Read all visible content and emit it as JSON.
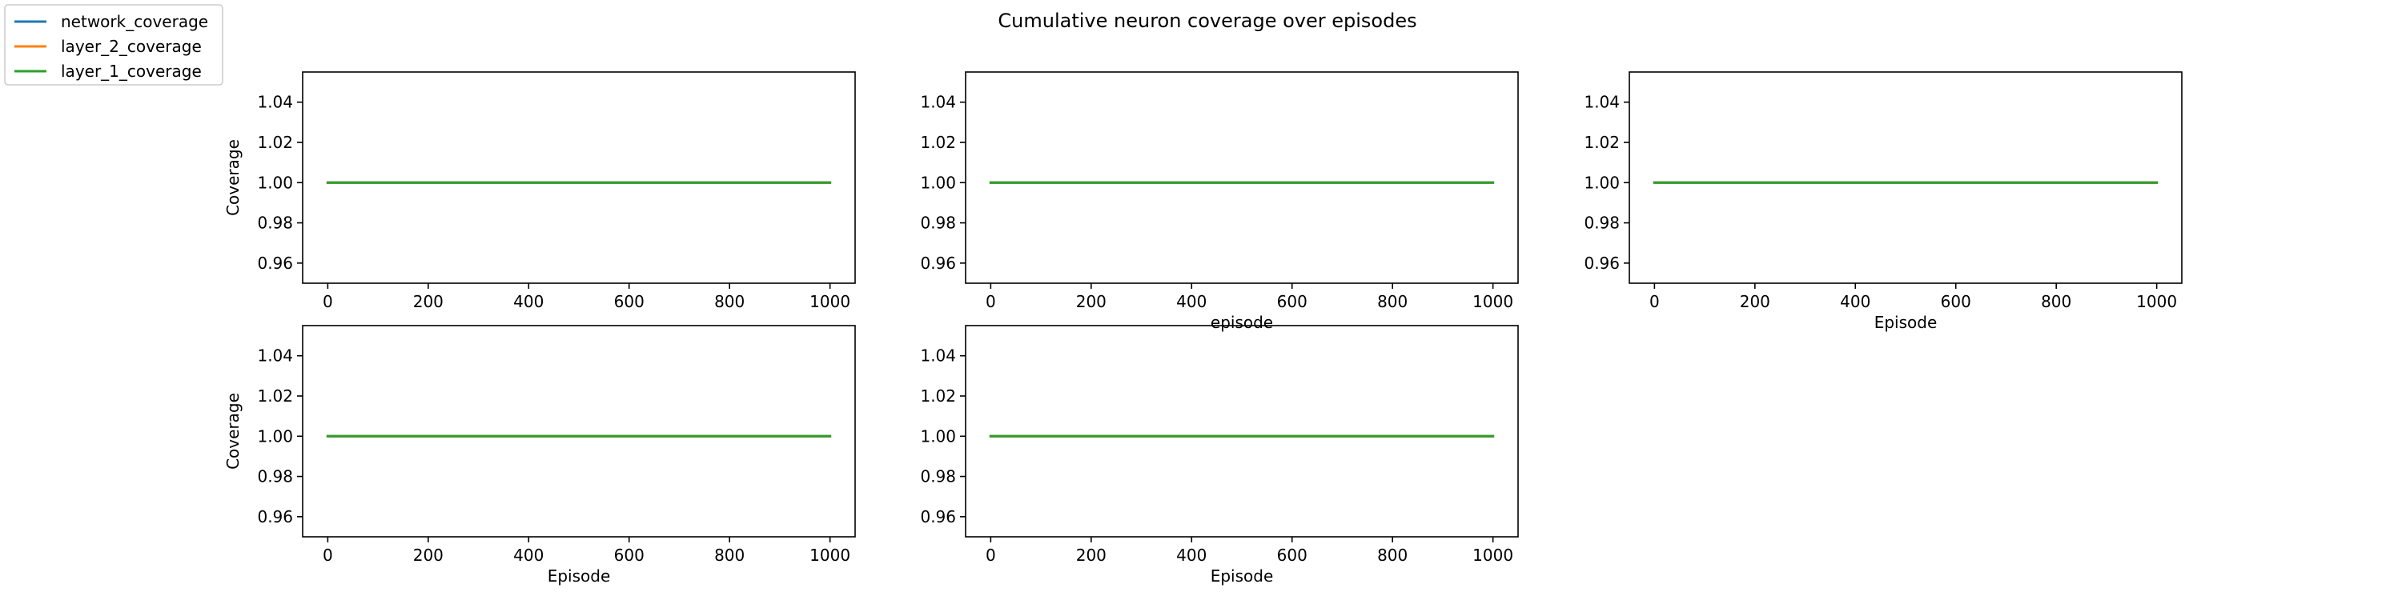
{
  "figure": {
    "title": "Cumulative neuron coverage over episodes"
  },
  "legend": {
    "placement": "top-left",
    "entries": [
      {
        "label": "network_coverage",
        "color": "#1f77b4"
      },
      {
        "label": "layer_2_coverage",
        "color": "#ff7f0e"
      },
      {
        "label": "layer_1_coverage",
        "color": "#2ca02c"
      }
    ]
  },
  "chart_data": [
    {
      "type": "line",
      "xlabel": "",
      "ylabel": "Coverage",
      "xlim": [
        -50,
        1050
      ],
      "ylim": [
        0.95,
        1.055
      ],
      "xticks": [
        0,
        200,
        400,
        600,
        800,
        1000
      ],
      "yticks": [
        0.96,
        0.98,
        1.0,
        1.02,
        1.04
      ],
      "grid": false,
      "series": [
        {
          "name": "network_coverage",
          "color": "#1f77b4",
          "x": [
            0,
            1000
          ],
          "y": [
            1.0,
            1.0
          ]
        },
        {
          "name": "layer_2_coverage",
          "color": "#ff7f0e",
          "x": [
            0,
            1000
          ],
          "y": [
            1.0,
            1.0
          ]
        },
        {
          "name": "layer_1_coverage",
          "color": "#2ca02c",
          "x": [
            0,
            1000
          ],
          "y": [
            1.0,
            1.0
          ]
        }
      ]
    },
    {
      "type": "line",
      "xlabel": "episode",
      "ylabel": "",
      "xlim": [
        -50,
        1050
      ],
      "ylim": [
        0.95,
        1.055
      ],
      "xticks": [
        0,
        200,
        400,
        600,
        800,
        1000
      ],
      "yticks": [
        0.96,
        0.98,
        1.0,
        1.02,
        1.04
      ],
      "grid": false,
      "series": [
        {
          "name": "network_coverage",
          "color": "#1f77b4",
          "x": [
            0,
            1000
          ],
          "y": [
            1.0,
            1.0
          ]
        },
        {
          "name": "layer_2_coverage",
          "color": "#ff7f0e",
          "x": [
            0,
            1000
          ],
          "y": [
            1.0,
            1.0
          ]
        },
        {
          "name": "layer_1_coverage",
          "color": "#2ca02c",
          "x": [
            0,
            1000
          ],
          "y": [
            1.0,
            1.0
          ]
        }
      ]
    },
    {
      "type": "line",
      "xlabel": "Episode",
      "ylabel": "",
      "xlim": [
        -50,
        1050
      ],
      "ylim": [
        0.95,
        1.055
      ],
      "xticks": [
        0,
        200,
        400,
        600,
        800,
        1000
      ],
      "yticks": [
        0.96,
        0.98,
        1.0,
        1.02,
        1.04
      ],
      "grid": false,
      "series": [
        {
          "name": "network_coverage",
          "color": "#1f77b4",
          "x": [
            0,
            1000
          ],
          "y": [
            1.0,
            1.0
          ]
        },
        {
          "name": "layer_2_coverage",
          "color": "#ff7f0e",
          "x": [
            0,
            1000
          ],
          "y": [
            1.0,
            1.0
          ]
        },
        {
          "name": "layer_1_coverage",
          "color": "#2ca02c",
          "x": [
            0,
            1000
          ],
          "y": [
            1.0,
            1.0
          ]
        }
      ]
    },
    {
      "type": "line",
      "xlabel": "Episode",
      "ylabel": "Coverage",
      "xlim": [
        -50,
        1050
      ],
      "ylim": [
        0.95,
        1.055
      ],
      "xticks": [
        0,
        200,
        400,
        600,
        800,
        1000
      ],
      "yticks": [
        0.96,
        0.98,
        1.0,
        1.02,
        1.04
      ],
      "grid": false,
      "series": [
        {
          "name": "network_coverage",
          "color": "#1f77b4",
          "x": [
            0,
            1000
          ],
          "y": [
            1.0,
            1.0
          ]
        },
        {
          "name": "layer_2_coverage",
          "color": "#ff7f0e",
          "x": [
            0,
            1000
          ],
          "y": [
            1.0,
            1.0
          ]
        },
        {
          "name": "layer_1_coverage",
          "color": "#2ca02c",
          "x": [
            0,
            1000
          ],
          "y": [
            1.0,
            1.0
          ]
        }
      ]
    },
    {
      "type": "line",
      "xlabel": "Episode",
      "ylabel": "",
      "xlim": [
        -50,
        1050
      ],
      "ylim": [
        0.95,
        1.055
      ],
      "xticks": [
        0,
        200,
        400,
        600,
        800,
        1000
      ],
      "yticks": [
        0.96,
        0.98,
        1.0,
        1.02,
        1.04
      ],
      "grid": false,
      "series": [
        {
          "name": "network_coverage",
          "color": "#1f77b4",
          "x": [
            0,
            1000
          ],
          "y": [
            1.0,
            1.0
          ]
        },
        {
          "name": "layer_2_coverage",
          "color": "#ff7f0e",
          "x": [
            0,
            1000
          ],
          "y": [
            1.0,
            1.0
          ]
        },
        {
          "name": "layer_1_coverage",
          "color": "#2ca02c",
          "x": [
            0,
            1000
          ],
          "y": [
            1.0,
            1.0
          ]
        }
      ]
    }
  ]
}
